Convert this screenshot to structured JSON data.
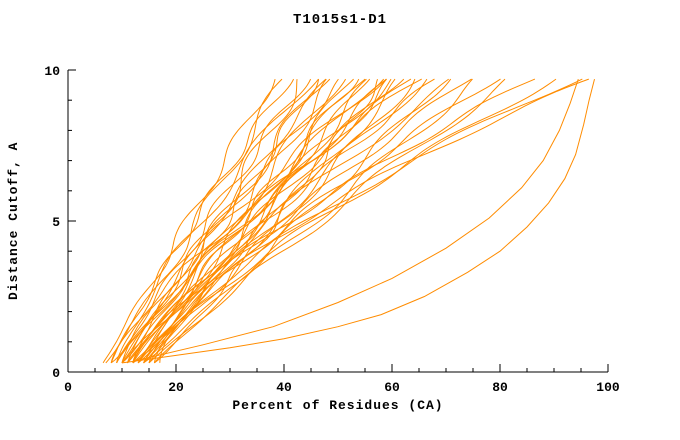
{
  "chart_data": {
    "type": "line",
    "title": "T1015s1-D1",
    "xlabel": "Percent of Residues (CA)",
    "ylabel": "Distance Cutoff, A",
    "xlim": [
      0,
      100
    ],
    "ylim": [
      0,
      10
    ],
    "xticks": [
      0,
      20,
      40,
      60,
      80,
      100
    ],
    "yticks": [
      0,
      5,
      10
    ],
    "x_minor_step": 5,
    "y_minor_step": 1,
    "line_color": "#ff8c00",
    "axis_color": "#000000",
    "text_color": "#000000",
    "series": [
      {
        "x0": 6.5,
        "x1": 38,
        "p": 1.0,
        "amp": 1.0,
        "freq": 2.2,
        "phase": 0.3
      },
      {
        "x0": 7,
        "x1": 40,
        "p": 0.95,
        "amp": 1.3,
        "freq": 1.8,
        "phase": 1.1
      },
      {
        "x0": 8,
        "x1": 41,
        "p": 1.1,
        "amp": 0.9,
        "freq": 2.6,
        "phase": 2.0
      },
      {
        "x0": 8,
        "x1": 43,
        "p": 0.85,
        "amp": 1.5,
        "freq": 2.0,
        "phase": 3.0
      },
      {
        "x0": 9,
        "x1": 44,
        "p": 1.05,
        "amp": 1.1,
        "freq": 2.4,
        "phase": 4.0
      },
      {
        "x0": 9,
        "x1": 45,
        "p": 1.2,
        "amp": 1.4,
        "freq": 1.6,
        "phase": 5.0
      },
      {
        "x0": 10,
        "x1": 46,
        "p": 0.9,
        "amp": 1.0,
        "freq": 2.8,
        "phase": 0.7
      },
      {
        "x0": 10,
        "x1": 47,
        "p": 1.0,
        "amp": 1.6,
        "freq": 1.9,
        "phase": 1.6
      },
      {
        "x0": 11,
        "x1": 48,
        "p": 1.15,
        "amp": 0.8,
        "freq": 2.3,
        "phase": 2.5
      },
      {
        "x0": 11,
        "x1": 49,
        "p": 0.95,
        "amp": 1.2,
        "freq": 2.1,
        "phase": 3.4
      },
      {
        "x0": 12,
        "x1": 50,
        "p": 1.0,
        "amp": 1.5,
        "freq": 1.7,
        "phase": 4.3
      },
      {
        "x0": 12,
        "x1": 51,
        "p": 1.25,
        "amp": 1.0,
        "freq": 2.5,
        "phase": 5.2
      },
      {
        "x0": 13,
        "x1": 52,
        "p": 0.9,
        "amp": 1.3,
        "freq": 2.0,
        "phase": 0.2
      },
      {
        "x0": 13,
        "x1": 53,
        "p": 1.05,
        "amp": 1.1,
        "freq": 2.7,
        "phase": 1.2
      },
      {
        "x0": 14,
        "x1": 54,
        "p": 1.1,
        "amp": 1.4,
        "freq": 1.8,
        "phase": 2.2
      },
      {
        "x0": 14,
        "x1": 55,
        "p": 0.95,
        "amp": 0.9,
        "freq": 2.4,
        "phase": 3.2
      },
      {
        "x0": 15,
        "x1": 56,
        "p": 1.0,
        "amp": 1.2,
        "freq": 2.1,
        "phase": 4.1
      },
      {
        "x0": 15,
        "x1": 57,
        "p": 1.2,
        "amp": 1.5,
        "freq": 1.6,
        "phase": 5.1
      },
      {
        "x0": 16,
        "x1": 58,
        "p": 0.9,
        "amp": 1.0,
        "freq": 2.9,
        "phase": 0.9
      },
      {
        "x0": 10,
        "x1": 58,
        "p": 1.3,
        "amp": 1.3,
        "freq": 2.0,
        "phase": 1.8
      },
      {
        "x0": 11,
        "x1": 59,
        "p": 1.0,
        "amp": 1.1,
        "freq": 2.3,
        "phase": 2.8
      },
      {
        "x0": 9,
        "x1": 60,
        "p": 1.1,
        "amp": 1.4,
        "freq": 1.9,
        "phase": 3.7
      },
      {
        "x0": 12,
        "x1": 60,
        "p": 0.95,
        "amp": 1.0,
        "freq": 2.6,
        "phase": 4.6
      },
      {
        "x0": 13,
        "x1": 61,
        "p": 1.15,
        "amp": 1.2,
        "freq": 2.2,
        "phase": 5.5
      },
      {
        "x0": 14,
        "x1": 62,
        "p": 1.0,
        "amp": 1.5,
        "freq": 1.7,
        "phase": 0.5
      },
      {
        "x0": 10,
        "x1": 63,
        "p": 1.2,
        "amp": 1.0,
        "freq": 2.5,
        "phase": 1.4
      },
      {
        "x0": 12,
        "x1": 64,
        "p": 0.9,
        "amp": 1.3,
        "freq": 2.0,
        "phase": 2.4
      },
      {
        "x0": 8,
        "x1": 65,
        "p": 1.3,
        "amp": 1.1,
        "freq": 2.3,
        "phase": 3.3
      },
      {
        "x0": 13,
        "x1": 66,
        "p": 1.05,
        "amp": 1.4,
        "freq": 1.8,
        "phase": 4.2
      },
      {
        "x0": 11,
        "x1": 68,
        "p": 1.15,
        "amp": 1.0,
        "freq": 2.7,
        "phase": 5.1
      },
      {
        "x0": 14,
        "x1": 70,
        "p": 0.95,
        "amp": 1.2,
        "freq": 2.1,
        "phase": 0.8
      },
      {
        "x0": 12,
        "x1": 72,
        "p": 1.25,
        "amp": 1.5,
        "freq": 1.6,
        "phase": 1.7
      },
      {
        "x0": 10,
        "x1": 74,
        "p": 1.1,
        "amp": 1.0,
        "freq": 2.4,
        "phase": 2.7
      },
      {
        "x0": 15,
        "x1": 76,
        "p": 1.0,
        "amp": 1.3,
        "freq": 2.0,
        "phase": 3.6
      },
      {
        "x0": 13,
        "x1": 79,
        "p": 1.2,
        "amp": 1.1,
        "freq": 2.3,
        "phase": 4.5
      },
      {
        "x0": 16,
        "x1": 82,
        "p": 1.1,
        "amp": 1.4,
        "freq": 1.8,
        "phase": 5.4
      },
      {
        "x0": 12,
        "x1": 86,
        "p": 1.35,
        "amp": 1.0,
        "freq": 2.6,
        "phase": 0.4
      },
      {
        "x0": 14,
        "x1": 90,
        "p": 1.25,
        "amp": 1.2,
        "freq": 2.1,
        "phase": 1.3
      },
      {
        "x0": 16,
        "x1": 94,
        "p": 1.45,
        "amp": 1.3,
        "freq": 1.9,
        "phase": 2.3
      },
      {
        "x0": 17,
        "x1": 97,
        "p": 1.6,
        "amp": 1.0,
        "freq": 2.2,
        "phase": 3.2
      },
      {
        "points": [
          [
            10,
            0.3
          ],
          [
            20,
            0.55
          ],
          [
            30,
            0.8
          ],
          [
            40,
            1.1
          ],
          [
            50,
            1.5
          ],
          [
            58,
            1.9
          ],
          [
            66,
            2.5
          ],
          [
            74,
            3.3
          ],
          [
            80,
            4.0
          ],
          [
            85,
            4.8
          ],
          [
            89,
            5.6
          ],
          [
            92,
            6.4
          ],
          [
            94,
            7.2
          ],
          [
            95.5,
            8.2
          ],
          [
            96.5,
            9.0
          ],
          [
            97.5,
            9.7
          ]
        ]
      },
      {
        "points": [
          [
            12,
            0.35
          ],
          [
            25,
            0.9
          ],
          [
            38,
            1.5
          ],
          [
            50,
            2.3
          ],
          [
            60,
            3.1
          ],
          [
            70,
            4.1
          ],
          [
            78,
            5.1
          ],
          [
            84,
            6.1
          ],
          [
            88,
            7.0
          ],
          [
            91,
            8.0
          ],
          [
            93,
            8.9
          ],
          [
            94.5,
            9.7
          ]
        ]
      }
    ]
  }
}
